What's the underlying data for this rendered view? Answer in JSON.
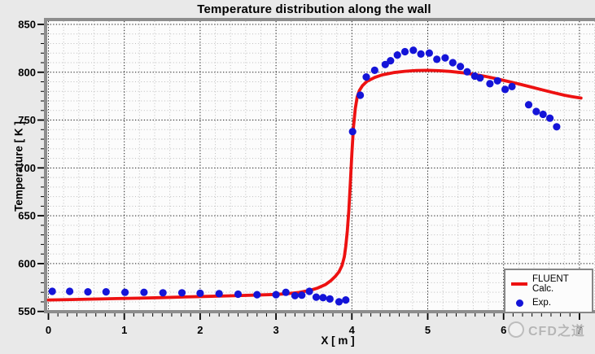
{
  "chart_data": {
    "type": "line+scatter",
    "title": "Temperature distribution along the wall",
    "xlabel": "X [ m ]",
    "ylabel": "Temperature [ K ]",
    "xlim": [
      0,
      7
    ],
    "ylim": [
      550,
      850
    ],
    "grid": "on",
    "x_ticks": [
      0,
      1,
      2,
      3,
      4,
      5,
      6,
      7
    ],
    "x_tick_labels": [
      "0",
      "1",
      "2",
      "3",
      "4",
      "5",
      "6",
      "7"
    ],
    "y_ticks": [
      550,
      600,
      650,
      700,
      750,
      800,
      850
    ],
    "y_tick_labels": [
      "550",
      "600",
      "650",
      "700",
      "750",
      "800",
      "850"
    ],
    "x_minor_grid_step": 0.2,
    "y_minor_grid_step": 10,
    "x_minor_tick_step": 0.125,
    "y_minor_tick_step": 10,
    "legend_position": "lower right",
    "series": [
      {
        "name": "FLUENT Calc.",
        "type": "line",
        "color": "#ed1111",
        "points": [
          [
            0.0,
            562
          ],
          [
            0.3,
            562.4
          ],
          [
            0.6,
            562.9
          ],
          [
            0.9,
            563.4
          ],
          [
            1.2,
            563.9
          ],
          [
            1.5,
            564.5
          ],
          [
            1.8,
            565.1
          ],
          [
            2.1,
            565.7
          ],
          [
            2.4,
            566.3
          ],
          [
            2.7,
            567.0
          ],
          [
            3.0,
            567.8
          ],
          [
            3.15,
            568.5
          ],
          [
            3.3,
            569.8
          ],
          [
            3.45,
            572.0
          ],
          [
            3.55,
            574.5
          ],
          [
            3.65,
            578.0
          ],
          [
            3.72,
            582.0
          ],
          [
            3.78,
            586.5
          ],
          [
            3.83,
            591.5
          ],
          [
            3.87,
            598.0
          ],
          [
            3.9,
            607.0
          ],
          [
            3.92,
            618.0
          ],
          [
            3.94,
            634.0
          ],
          [
            3.96,
            656.0
          ],
          [
            3.98,
            684.0
          ],
          [
            4.0,
            715.0
          ],
          [
            4.02,
            742.0
          ],
          [
            4.045,
            762.0
          ],
          [
            4.07,
            774.0
          ],
          [
            4.1,
            781.0
          ],
          [
            4.14,
            786.0
          ],
          [
            4.2,
            790.5
          ],
          [
            4.3,
            794.5
          ],
          [
            4.4,
            797.2
          ],
          [
            4.55,
            799.6
          ],
          [
            4.7,
            801.0
          ],
          [
            4.85,
            801.8
          ],
          [
            5.0,
            802.0
          ],
          [
            5.15,
            801.6
          ],
          [
            5.3,
            800.8
          ],
          [
            5.45,
            799.5
          ],
          [
            5.6,
            797.8
          ],
          [
            5.75,
            795.8
          ],
          [
            5.9,
            793.3
          ],
          [
            6.05,
            790.5
          ],
          [
            6.2,
            787.8
          ],
          [
            6.35,
            784.8
          ],
          [
            6.5,
            781.8
          ],
          [
            6.65,
            778.8
          ],
          [
            6.8,
            776.0
          ],
          [
            6.9,
            774.5
          ],
          [
            7.02,
            773.0
          ]
        ]
      },
      {
        "name": "Exp.",
        "type": "scatter",
        "color": "#1414d8",
        "points": [
          [
            0.05,
            571
          ],
          [
            0.28,
            571
          ],
          [
            0.52,
            570.5
          ],
          [
            0.76,
            570.5
          ],
          [
            1.01,
            570
          ],
          [
            1.26,
            570
          ],
          [
            1.51,
            569.5
          ],
          [
            1.76,
            569.5
          ],
          [
            2.0,
            569
          ],
          [
            2.25,
            568.5
          ],
          [
            2.5,
            568
          ],
          [
            2.75,
            567.5
          ],
          [
            3.0,
            567.5
          ],
          [
            3.13,
            570
          ],
          [
            3.25,
            566.5
          ],
          [
            3.34,
            567
          ],
          [
            3.44,
            571
          ],
          [
            3.53,
            565
          ],
          [
            3.62,
            564.5
          ],
          [
            3.71,
            563
          ],
          [
            3.83,
            560
          ],
          [
            3.92,
            562
          ],
          [
            4.01,
            738
          ],
          [
            4.11,
            776
          ],
          [
            4.19,
            795
          ],
          [
            4.3,
            802
          ],
          [
            4.44,
            808
          ],
          [
            4.51,
            812
          ],
          [
            4.6,
            818
          ],
          [
            4.7,
            821.5
          ],
          [
            4.81,
            823
          ],
          [
            4.91,
            819
          ],
          [
            5.02,
            820
          ],
          [
            5.12,
            813.5
          ],
          [
            5.23,
            815
          ],
          [
            5.33,
            810
          ],
          [
            5.43,
            806
          ],
          [
            5.52,
            800.5
          ],
          [
            5.62,
            796
          ],
          [
            5.69,
            794
          ],
          [
            5.82,
            788
          ],
          [
            5.92,
            791
          ],
          [
            6.02,
            782
          ],
          [
            6.11,
            785
          ],
          [
            6.33,
            766
          ],
          [
            6.43,
            759
          ],
          [
            6.52,
            756
          ],
          [
            6.61,
            752
          ],
          [
            6.7,
            743
          ]
        ]
      }
    ]
  },
  "colors": {
    "outer_background": "#e9e9e9",
    "plot_background": "#fcfcfc",
    "frame": "#8d8d8d",
    "major_grid": "#1a1a1a",
    "minor_grid": "#bdbdbd",
    "fluent_line": "#ed1111",
    "exp_marker": "#1414d8",
    "watermark": "#b0b0b0"
  },
  "watermark": {
    "text": "CFD之道"
  }
}
